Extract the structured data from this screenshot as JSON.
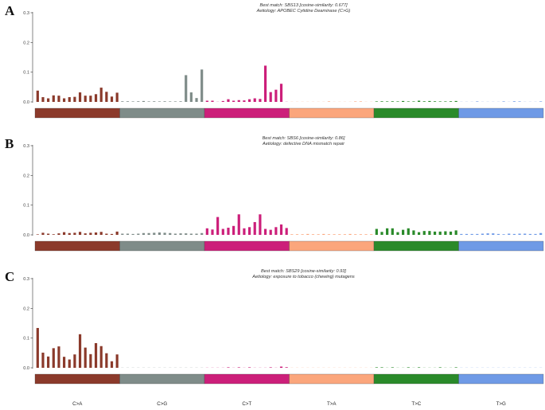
{
  "colors": {
    "C>A": "#8b3a2b",
    "C>G": "#7f8c89",
    "C>T": "#cc1f7a",
    "T>A": "#fba67c",
    "T>C": "#2a8a2a",
    "T>G": "#6f9ae6"
  },
  "chart_data": [
    {
      "type": "bar",
      "panel": "A",
      "title": "Best match: SBS13 [cosine-similarity: 0.677]",
      "subtitle": "Aetiology: APOBEC Cytidine Deaminase (C>G)",
      "groups": [
        "C>A",
        "C>G",
        "C>T",
        "T>A",
        "T>C",
        "T>G"
      ],
      "ylim": [
        0,
        0.3
      ],
      "yticks": [
        "0.0",
        "0.1",
        "0.2",
        "0.3"
      ],
      "values": [
        [
          0.038,
          0.016,
          0.012,
          0.022,
          0.021,
          0.012,
          0.016,
          0.017,
          0.032,
          0.021,
          0.021,
          0.026,
          0.048,
          0.034,
          0.018,
          0.031
        ],
        [
          0.002,
          0.002,
          0.001,
          0.002,
          0.003,
          0.001,
          0.002,
          0.001,
          0.002,
          0.001,
          0.001,
          0.002,
          0.09,
          0.032,
          0.013,
          0.109
        ],
        [
          0.004,
          0.004,
          0.0,
          0.003,
          0.009,
          0.004,
          0.006,
          0.005,
          0.009,
          0.012,
          0.01,
          0.122,
          0.033,
          0.041,
          0.061,
          0.0
        ],
        [
          0.0,
          0.0,
          0.0,
          0.0,
          0.0,
          0.0,
          0.0,
          0.001,
          0.0,
          0.0,
          0.0,
          0.0,
          0.001,
          0.001,
          0.0,
          0.0
        ],
        [
          0.001,
          0.002,
          0.001,
          0.002,
          0.001,
          0.003,
          0.001,
          0.001,
          0.004,
          0.002,
          0.003,
          0.002,
          0.001,
          0.001,
          0.002,
          0.003
        ],
        [
          0.0,
          0.0,
          0.0,
          0.001,
          0.0,
          0.0,
          0.0,
          0.0,
          0.001,
          0.0,
          0.002,
          0.001,
          0.0,
          0.0,
          0.0,
          0.001
        ]
      ]
    },
    {
      "type": "bar",
      "panel": "B",
      "title": "Best match: SBS6 [cosine-similarity: 0.86]",
      "subtitle": "Aetiology: defective DNA mismatch repair",
      "groups": [
        "C>A",
        "C>G",
        "C>T",
        "T>A",
        "T>C",
        "T>G"
      ],
      "ylim": [
        0,
        0.3
      ],
      "yticks": [
        "0.0",
        "0.1",
        "0.2",
        "0.3"
      ],
      "values": [
        [
          0.001,
          0.007,
          0.004,
          0.002,
          0.005,
          0.009,
          0.006,
          0.007,
          0.01,
          0.005,
          0.007,
          0.008,
          0.01,
          0.004,
          0.003,
          0.011
        ],
        [
          0.004,
          0.004,
          0.003,
          0.004,
          0.006,
          0.006,
          0.007,
          0.008,
          0.007,
          0.006,
          0.004,
          0.005,
          0.005,
          0.004,
          0.004,
          0.006
        ],
        [
          0.022,
          0.018,
          0.06,
          0.02,
          0.024,
          0.03,
          0.069,
          0.022,
          0.026,
          0.043,
          0.069,
          0.02,
          0.017,
          0.026,
          0.035,
          0.023
        ],
        [
          0.002,
          0.002,
          0.002,
          0.003,
          0.002,
          0.002,
          0.003,
          0.002,
          0.002,
          0.002,
          0.002,
          0.003,
          0.002,
          0.002,
          0.002,
          0.002
        ],
        [
          0.02,
          0.01,
          0.022,
          0.022,
          0.009,
          0.017,
          0.022,
          0.015,
          0.009,
          0.013,
          0.013,
          0.011,
          0.011,
          0.012,
          0.011,
          0.015
        ],
        [
          0.003,
          0.003,
          0.003,
          0.003,
          0.004,
          0.005,
          0.005,
          0.003,
          0.002,
          0.004,
          0.003,
          0.004,
          0.004,
          0.003,
          0.003,
          0.006
        ]
      ]
    },
    {
      "type": "bar",
      "panel": "C",
      "title": "Best match: SBS29 [cosine-similarity: 0.93]",
      "subtitle": "Aetiology: exposure to tobacco (chewing) mutagens",
      "groups": [
        "C>A",
        "C>G",
        "C>T",
        "T>A",
        "T>C",
        "T>G"
      ],
      "ylim": [
        0,
        0.3
      ],
      "yticks": [
        "0.0",
        "0.1",
        "0.2",
        "0.3"
      ],
      "xlabels": [
        "C>A",
        "C>G",
        "C>T",
        "T>A",
        "T>C",
        "T>G"
      ],
      "values": [
        [
          0.134,
          0.051,
          0.038,
          0.066,
          0.072,
          0.037,
          0.028,
          0.045,
          0.113,
          0.068,
          0.046,
          0.083,
          0.073,
          0.049,
          0.022,
          0.045
        ],
        [
          0.0,
          0.0,
          0.0,
          0.0,
          0.0,
          0.0,
          0.0,
          0.0,
          0.0,
          0.0,
          0.0,
          0.0,
          0.0,
          0.0,
          0.0,
          0.0
        ],
        [
          0.0,
          0.0,
          0.0,
          0.0,
          0.001,
          0.0,
          0.001,
          0.0,
          0.001,
          0.0,
          0.0,
          0.0,
          0.001,
          0.0,
          0.004,
          0.002
        ],
        [
          0.0,
          0.0,
          0.0,
          0.0,
          0.0,
          0.0,
          0.0,
          0.0,
          0.0,
          0.0,
          0.0,
          0.0,
          0.0,
          0.0,
          0.0,
          0.0
        ],
        [
          0.001,
          0.001,
          0.0,
          0.001,
          0.0,
          0.0,
          0.001,
          0.0,
          0.001,
          0.0,
          0.0,
          0.0,
          0.001,
          0.0,
          0.0,
          0.001
        ],
        [
          0.0,
          0.0,
          0.0,
          0.0,
          0.0,
          0.0,
          0.0,
          0.0,
          0.0,
          0.0,
          0.0,
          0.0,
          0.0,
          0.0,
          0.0,
          0.0
        ]
      ]
    }
  ]
}
